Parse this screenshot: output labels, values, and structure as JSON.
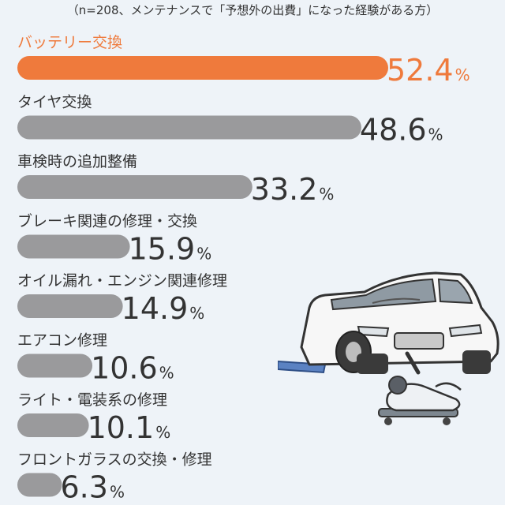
{
  "subtitle": "（n=208、メンテナンスで「予想外の出費」になった経験がある方）",
  "colors": {
    "highlight": "#ef7a3c",
    "bar": "#9a9a9c",
    "text": "#333333",
    "background": "#eef3f8"
  },
  "chart_data": {
    "type": "bar",
    "orientation": "horizontal",
    "categories": [
      "バッテリー交換",
      "タイヤ交換",
      "車検時の追加整備",
      "ブレーキ関連の修理・交換",
      "オイル漏れ・エンジン関連修理",
      "エアコン修理",
      "ライト・電装系の修理",
      "フロントガラスの交換・修理"
    ],
    "values": [
      52.4,
      48.6,
      33.2,
      15.9,
      14.9,
      10.6,
      10.1,
      6.3
    ],
    "value_labels": [
      "52.4",
      "48.6",
      "33.2",
      "15.9",
      "14.9",
      "10.6",
      "10.1",
      "6.3"
    ],
    "unit": "%",
    "highlight_index": 0,
    "xlim": [
      0,
      52.4
    ]
  }
}
